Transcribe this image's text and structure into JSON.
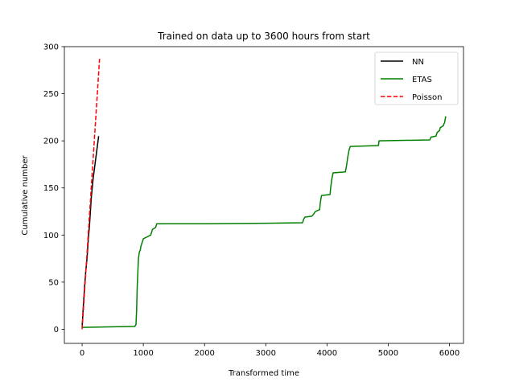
{
  "chart_data": {
    "type": "line",
    "title": "Trained on data up to 3600 hours from start",
    "xlabel": "Transformed time",
    "ylabel": "Cumulative number",
    "xlim": [
      -290,
      6230
    ],
    "ylim": [
      -15,
      300
    ],
    "xticks": [
      0,
      1000,
      2000,
      3000,
      4000,
      5000,
      6000
    ],
    "yticks": [
      0,
      50,
      100,
      150,
      200,
      250,
      300
    ],
    "grid": false,
    "legend_position": "top-right",
    "series": [
      {
        "name": "NN",
        "color": "#000000",
        "dash": "solid",
        "points": [
          [
            0,
            2
          ],
          [
            20,
            25
          ],
          [
            40,
            45
          ],
          [
            60,
            62
          ],
          [
            80,
            75
          ],
          [
            100,
            95
          ],
          [
            120,
            110
          ],
          [
            150,
            140
          ],
          [
            180,
            160
          ],
          [
            200,
            170
          ],
          [
            220,
            180
          ],
          [
            240,
            190
          ],
          [
            270,
            205
          ]
        ]
      },
      {
        "name": "ETAS",
        "color": "#008000",
        "dash": "solid",
        "points": [
          [
            0,
            2
          ],
          [
            860,
            3
          ],
          [
            880,
            5
          ],
          [
            890,
            20
          ],
          [
            900,
            45
          ],
          [
            910,
            60
          ],
          [
            920,
            75
          ],
          [
            935,
            82
          ],
          [
            950,
            84
          ],
          [
            960,
            88
          ],
          [
            980,
            92
          ],
          [
            1000,
            96
          ],
          [
            1060,
            98
          ],
          [
            1120,
            100
          ],
          [
            1150,
            106
          ],
          [
            1200,
            108
          ],
          [
            1220,
            112
          ],
          [
            2000,
            112
          ],
          [
            3000,
            112.5
          ],
          [
            3600,
            113
          ],
          [
            3620,
            117
          ],
          [
            3640,
            119
          ],
          [
            3750,
            120
          ],
          [
            3780,
            122
          ],
          [
            3810,
            125
          ],
          [
            3880,
            127
          ],
          [
            3890,
            134
          ],
          [
            3910,
            142
          ],
          [
            4050,
            143
          ],
          [
            4060,
            150
          ],
          [
            4080,
            160
          ],
          [
            4100,
            166
          ],
          [
            4300,
            167
          ],
          [
            4320,
            174
          ],
          [
            4340,
            183
          ],
          [
            4360,
            190
          ],
          [
            4380,
            194
          ],
          [
            4840,
            195
          ],
          [
            4850,
            200
          ],
          [
            5680,
            201
          ],
          [
            5700,
            204
          ],
          [
            5780,
            205
          ],
          [
            5800,
            209
          ],
          [
            5840,
            211
          ],
          [
            5850,
            214
          ],
          [
            5900,
            216
          ],
          [
            5910,
            218
          ],
          [
            5920,
            219
          ],
          [
            5940,
            226
          ]
        ]
      },
      {
        "name": "Poisson",
        "color": "#ff0000",
        "dash": "dashed",
        "points": [
          [
            0,
            0
          ],
          [
            285,
            287
          ]
        ]
      }
    ]
  }
}
